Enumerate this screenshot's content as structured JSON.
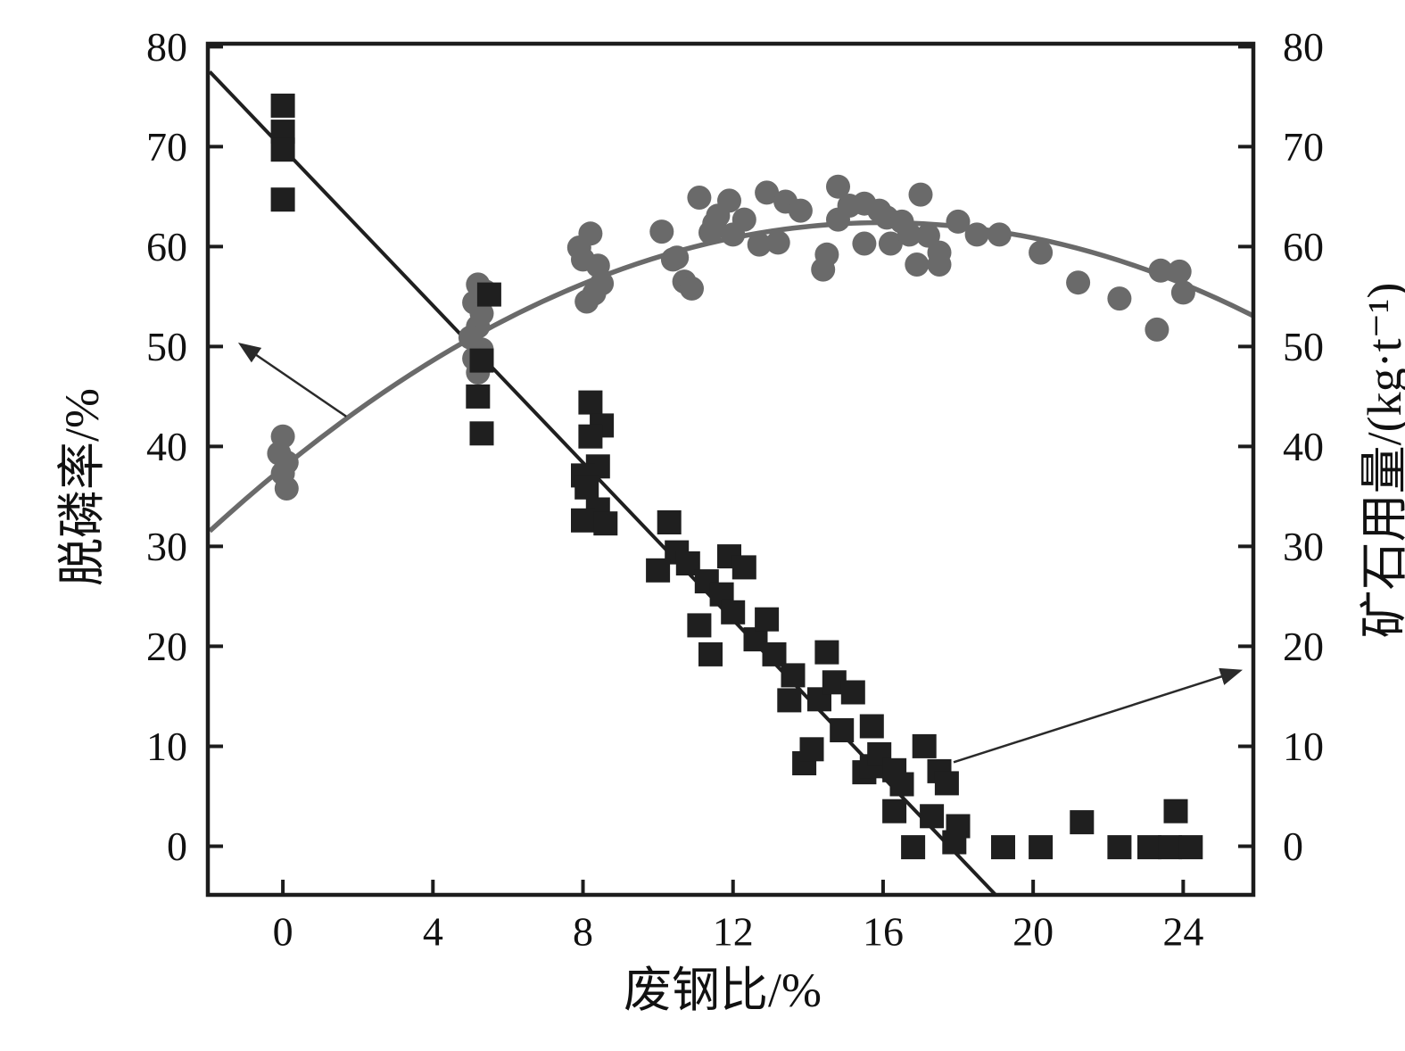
{
  "page": {
    "background": "#ffffff"
  },
  "axes": {
    "x": {
      "label": "废钢比/%",
      "ticks": [
        0,
        4,
        8,
        12,
        16,
        20,
        24
      ],
      "range": [
        -2,
        25.87
      ]
    },
    "left": {
      "label": "脱磷率/%",
      "ticks": [
        80,
        70,
        60,
        50,
        40,
        30,
        20,
        10,
        0
      ],
      "range": [
        -4.87,
        80.3
      ]
    },
    "right": {
      "label": "矿石用量/(kg·t⁻¹)",
      "ticks": [
        80,
        70,
        60,
        50,
        40,
        30,
        20,
        10,
        0
      ],
      "range": [
        -4.87,
        80.3
      ]
    }
  },
  "chart_data": {
    "type": "scatter",
    "title": "",
    "xlabel": "废钢比/%",
    "ylabel_left": "脱磷率/%",
    "ylabel_right": "矿石用量/(kg·t⁻¹)",
    "xlim": [
      -2,
      25.87
    ],
    "ylim": [
      -4.87,
      80.3
    ],
    "grid": false,
    "legend_position": "none",
    "colors": {
      "circle_series": "#6a6a6a",
      "square_series": "#1f1f1f",
      "axis": "#1c1c1c",
      "arrow": "#2a2a2a"
    },
    "series": [
      {
        "name": "脱磷率/%",
        "axis": "left",
        "marker": "circle",
        "color": "#6a6a6a",
        "points": [
          [
            0,
            41
          ],
          [
            -0.1,
            39.3
          ],
          [
            0.1,
            38.4
          ],
          [
            0,
            37.3
          ],
          [
            0.1,
            35.8
          ],
          [
            5.2,
            56.2
          ],
          [
            5.4,
            55.5
          ],
          [
            5.1,
            54.4
          ],
          [
            5.3,
            53.3
          ],
          [
            5.2,
            52
          ],
          [
            5,
            50.9
          ],
          [
            5.3,
            49.7
          ],
          [
            5.1,
            48.8
          ],
          [
            5.2,
            47.4
          ],
          [
            7.9,
            59.9
          ],
          [
            8.2,
            61.3
          ],
          [
            8,
            58.7
          ],
          [
            8.4,
            58.1
          ],
          [
            8.5,
            56.3
          ],
          [
            8.3,
            55.3
          ],
          [
            8.1,
            54.5
          ],
          [
            10.1,
            61.5
          ],
          [
            10.4,
            58.7
          ],
          [
            10.5,
            58.9
          ],
          [
            10.7,
            56.5
          ],
          [
            10.9,
            55.8
          ],
          [
            11.1,
            64.9
          ],
          [
            11.4,
            61.4
          ],
          [
            11.5,
            62.3
          ],
          [
            11.6,
            63.1
          ],
          [
            11.9,
            64.6
          ],
          [
            12,
            61.2
          ],
          [
            12.3,
            62.7
          ],
          [
            12.7,
            60.2
          ],
          [
            12.9,
            65.4
          ],
          [
            13.2,
            60.4
          ],
          [
            13.4,
            64.5
          ],
          [
            13.8,
            63.6
          ],
          [
            14.4,
            57.7
          ],
          [
            14.5,
            59.2
          ],
          [
            14.8,
            66
          ],
          [
            14.8,
            62.7
          ],
          [
            15.1,
            64.1
          ],
          [
            15.5,
            64.3
          ],
          [
            15.5,
            60.3
          ],
          [
            15.9,
            63.6
          ],
          [
            16.1,
            62.9
          ],
          [
            16.2,
            60.3
          ],
          [
            16.5,
            62.5
          ],
          [
            16.7,
            61.2
          ],
          [
            16.9,
            58.2
          ],
          [
            17,
            65.2
          ],
          [
            17.2,
            61.1
          ],
          [
            17.5,
            59.4
          ],
          [
            17.5,
            58.2
          ],
          [
            18,
            62.5
          ],
          [
            18.5,
            61.2
          ],
          [
            19.1,
            61.2
          ],
          [
            20.2,
            59.4
          ],
          [
            21.2,
            56.4
          ],
          [
            22.3,
            54.8
          ],
          [
            23.3,
            51.7
          ],
          [
            23.4,
            57.6
          ],
          [
            23.9,
            57.5
          ],
          [
            24,
            55.4
          ]
        ],
        "fit": {
          "type": "quadratic",
          "vertex": [
            16,
            62.4
          ],
          "a": -0.0958,
          "x_start": -1.95,
          "x_end": 25.87
        }
      },
      {
        "name": "矿石用量/(kg·t⁻¹)",
        "axis": "right",
        "marker": "square",
        "color": "#1f1f1f",
        "points": [
          [
            0,
            74.1
          ],
          [
            0,
            71.5
          ],
          [
            0,
            69.7
          ],
          [
            0,
            64.7
          ],
          [
            5.5,
            55.2
          ],
          [
            5.3,
            48.6
          ],
          [
            5.2,
            45
          ],
          [
            5.3,
            41.3
          ],
          [
            8.2,
            44.4
          ],
          [
            8.5,
            42.1
          ],
          [
            8.2,
            41
          ],
          [
            8.4,
            38
          ],
          [
            8,
            37.1
          ],
          [
            8.1,
            35.9
          ],
          [
            8.4,
            33.7
          ],
          [
            8,
            32.6
          ],
          [
            8.6,
            32.3
          ],
          [
            10.3,
            32.4
          ],
          [
            10.5,
            29.4
          ],
          [
            10,
            27.6
          ],
          [
            10.8,
            28.3
          ],
          [
            11.3,
            26.5
          ],
          [
            11.1,
            22.1
          ],
          [
            11.4,
            19.2
          ],
          [
            11.7,
            25.2
          ],
          [
            11.9,
            29
          ],
          [
            12,
            23.4
          ],
          [
            12.3,
            27.9
          ],
          [
            12.6,
            20.7
          ],
          [
            12.9,
            22.7
          ],
          [
            13.1,
            19.2
          ],
          [
            13.5,
            14.6
          ],
          [
            13.6,
            17.1
          ],
          [
            13.9,
            8.3
          ],
          [
            14.1,
            9.7
          ],
          [
            14.3,
            14.7
          ],
          [
            14.5,
            19.4
          ],
          [
            14.7,
            16.4
          ],
          [
            14.9,
            11.6
          ],
          [
            15.2,
            15.4
          ],
          [
            15.5,
            7.4
          ],
          [
            15.7,
            12
          ],
          [
            15.7,
            8
          ],
          [
            15.9,
            9.2
          ],
          [
            16.3,
            7.6
          ],
          [
            16.5,
            6.2
          ],
          [
            17.1,
            10
          ],
          [
            17.5,
            7.5
          ],
          [
            17.7,
            6.3
          ],
          [
            16.3,
            3.5
          ],
          [
            17.3,
            3
          ],
          [
            18,
            2
          ],
          [
            16.8,
            -0.1
          ],
          [
            17.9,
            0.4
          ],
          [
            19.2,
            -0.1
          ],
          [
            20.2,
            -0.1
          ],
          [
            21.3,
            2.4
          ],
          [
            22.3,
            -0.1
          ],
          [
            23.1,
            -0.1
          ],
          [
            23.65,
            -0.1
          ],
          [
            24.2,
            -0.1
          ],
          [
            23.8,
            3.5
          ]
        ],
        "fit": {
          "type": "linear",
          "from": [
            -1.95,
            77.5
          ],
          "to": [
            19.0,
            -4.87
          ]
        }
      }
    ],
    "annotations": {
      "arrows": [
        {
          "from": [
            1.69,
            43.0
          ],
          "to": [
            -1.12,
            50.2
          ],
          "points_to": "left-axis"
        },
        {
          "from": [
            17.88,
            8.4
          ],
          "to": [
            25.5,
            17.55
          ],
          "points_to": "right-axis"
        }
      ]
    }
  }
}
